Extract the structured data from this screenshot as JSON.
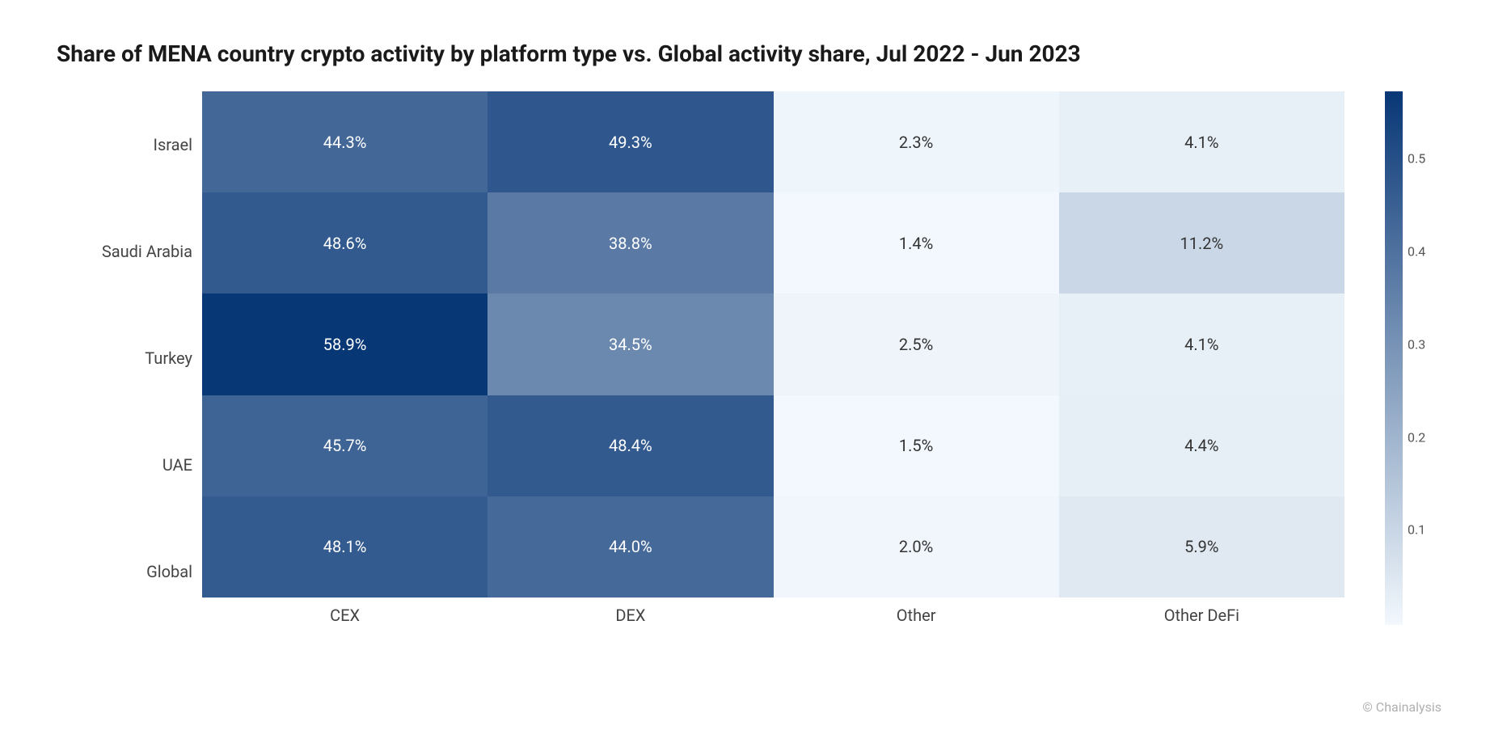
{
  "title": "Share of MENA country crypto activity by platform type vs. Global activity share, Jul 2022 - Jun 2023",
  "attribution": "© Chainalysis",
  "heatmap": {
    "type": "heatmap",
    "rows": [
      "Israel",
      "Saudi Arabia",
      "Turkey",
      "UAE",
      "Global"
    ],
    "columns": [
      "CEX",
      "DEX",
      "Other",
      "Other DeFi"
    ],
    "values": [
      [
        0.443,
        0.493,
        0.023,
        0.041
      ],
      [
        0.486,
        0.388,
        0.014,
        0.112
      ],
      [
        0.589,
        0.345,
        0.025,
        0.041
      ],
      [
        0.457,
        0.484,
        0.015,
        0.044
      ],
      [
        0.481,
        0.44,
        0.02,
        0.059
      ]
    ],
    "cell_labels": [
      [
        "44.3%",
        "49.3%",
        "2.3%",
        "4.1%"
      ],
      [
        "48.6%",
        "38.8%",
        "1.4%",
        "11.2%"
      ],
      [
        "58.9%",
        "34.5%",
        "2.5%",
        "4.1%"
      ],
      [
        "45.7%",
        "48.4%",
        "1.5%",
        "4.4%"
      ],
      [
        "48.1%",
        "44.0%",
        "2.0%",
        "5.9%"
      ]
    ],
    "vmin": 0.014,
    "vmax": 0.589,
    "cmap_low": "#f2f8fd",
    "cmap_high": "#083776",
    "text_light": "#ffffff",
    "text_dark": "#333333",
    "text_threshold": 0.28,
    "title_fontsize": 28,
    "label_fontsize": 20,
    "tick_fontsize": 16,
    "background_color": "#ffffff"
  },
  "colorbar": {
    "ticks": [
      0.1,
      0.2,
      0.3,
      0.4,
      0.5
    ],
    "tick_labels": [
      "0.1",
      "0.2",
      "0.3",
      "0.4",
      "0.5"
    ]
  }
}
